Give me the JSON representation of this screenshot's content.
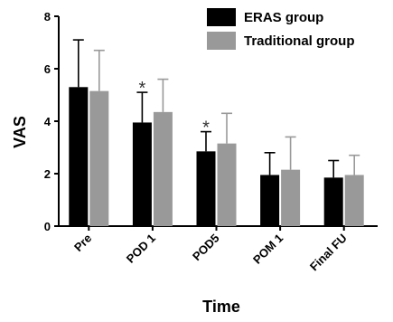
{
  "chart_data": {
    "type": "bar",
    "xlabel": "Time",
    "ylabel": "VAS",
    "ylim": [
      0,
      8
    ],
    "yticks": [
      "0",
      "2",
      "4",
      "6",
      "8"
    ],
    "categories": [
      "Pre",
      "POD 1",
      "POD5",
      "POM 1",
      "Final FU"
    ],
    "series": [
      {
        "name": "ERAS group",
        "color": "#000000",
        "values": [
          5.3,
          3.95,
          2.85,
          1.95,
          1.85
        ],
        "errors": [
          1.8,
          1.15,
          0.75,
          0.85,
          0.65
        ]
      },
      {
        "name": "Traditional group",
        "color": "#999999",
        "values": [
          5.15,
          4.35,
          3.15,
          2.15,
          1.95
        ],
        "errors": [
          1.55,
          1.25,
          1.15,
          1.25,
          0.75
        ]
      }
    ],
    "annotations": [
      {
        "category": "POD 1",
        "series": "ERAS group",
        "text": "*"
      },
      {
        "category": "POD5",
        "series": "ERAS group",
        "text": "*"
      }
    ],
    "legend": "top-right",
    "grid": false
  }
}
